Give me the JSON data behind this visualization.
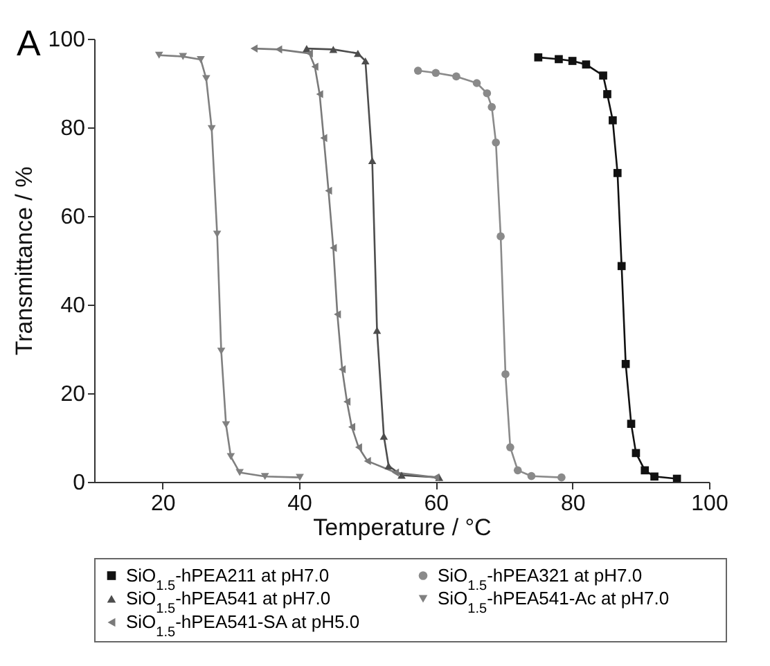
{
  "chart_data": {
    "type": "line",
    "xlabel": "Temperature / °C",
    "ylabel": "Transmittance / %",
    "xlim": [
      10,
      100
    ],
    "xticks": [
      20,
      40,
      60,
      80,
      100
    ],
    "ylim": [
      0,
      100
    ],
    "yticks": [
      0,
      20,
      40,
      60,
      80,
      100
    ],
    "legend": "bottom",
    "annotations": [
      "A"
    ],
    "series": [
      {
        "name": "SiO$_{1.5}$-hPEA211 at pH7.0",
        "color": "#111111",
        "marker": "square",
        "x": [
          75,
          78,
          80,
          82,
          84.5,
          85.1,
          85.9,
          86.6,
          87.2,
          87.8,
          88.6,
          89.3,
          90.6,
          92,
          95.3
        ],
        "values": [
          95.8,
          95.4,
          95,
          94.2,
          91.7,
          87.5,
          81.6,
          69.7,
          48.7,
          26.6,
          13.1,
          6.5,
          2.6,
          1.2,
          0.7
        ]
      },
      {
        "name": "SiO$_{1.5}$-hPEA321 at pH7.0",
        "color": "#8a8a8a",
        "marker": "circle",
        "x": [
          57.4,
          60,
          63,
          66,
          67.5,
          68.2,
          68.8,
          69.5,
          70.2,
          70.9,
          72,
          74,
          78.4
        ],
        "values": [
          92.8,
          92.3,
          91.5,
          90,
          87.7,
          84.6,
          76.6,
          55.4,
          24.3,
          7.8,
          2.6,
          1.3,
          1
        ]
      },
      {
        "name": "SiO$_{1.5}$-hPEA541 at pH7.0",
        "color": "#4d4d4d",
        "marker": "triangle-up",
        "x": [
          41.1,
          45,
          48.6,
          49.7,
          50.7,
          51.4,
          52.4,
          53.1,
          55,
          60.5
        ],
        "values": [
          97.8,
          97.6,
          96.7,
          95,
          72.5,
          34.2,
          10.3,
          3.6,
          1.5,
          1
        ]
      },
      {
        "name": "SiO$_{1.5}$-hPEA541-Ac at pH7.0",
        "color": "#808080",
        "marker": "triangle-down",
        "x": [
          19.5,
          23,
          25.6,
          26.4,
          27.2,
          28,
          28.6,
          29.3,
          30,
          31.3,
          35,
          40.1
        ],
        "values": [
          96.3,
          96,
          95.3,
          91,
          79.7,
          55.9,
          29.5,
          12.9,
          5.7,
          2.1,
          1.2,
          1
        ]
      },
      {
        "name": "SiO$_{1.5}$-hPEA541-SA at pH5.0",
        "color": "#7a7a7a",
        "marker": "triangle-left",
        "x": [
          33.4,
          37,
          41.5,
          42.3,
          43,
          43.6,
          44.3,
          45,
          45.6,
          46.3,
          47,
          47.7,
          48.7,
          50,
          54.1,
          60
        ],
        "values": [
          97.8,
          97.6,
          96.7,
          93.7,
          87.5,
          77.6,
          65.7,
          52.8,
          37.8,
          25.4,
          18.1,
          12.4,
          7.8,
          4.7,
          2.1,
          1
        ]
      }
    ]
  }
}
